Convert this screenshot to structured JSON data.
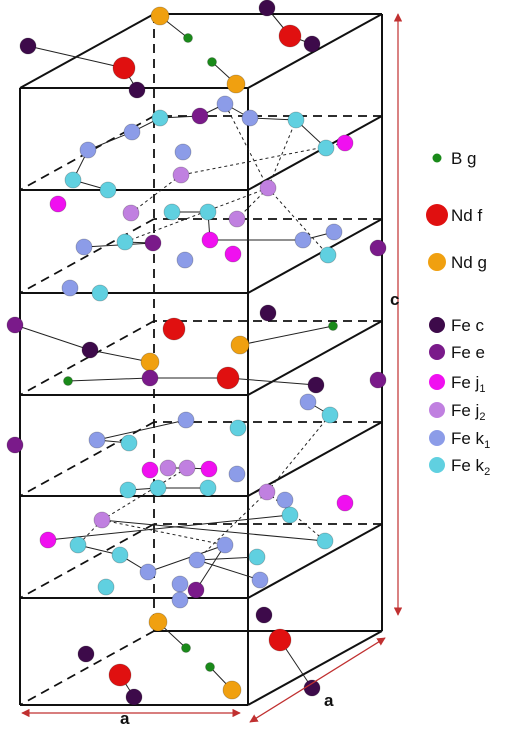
{
  "labels": {
    "a_front": "a",
    "a_side": "a",
    "c": "c"
  },
  "legend": [
    {
      "label": "B g",
      "color": "#1a8a1a"
    },
    {
      "label": "Nd f",
      "color": "#e01010"
    },
    {
      "label": "Nd g",
      "color": "#f0a010"
    },
    {
      "label": "Fe c",
      "color": "#3d0a4a"
    },
    {
      "label": "Fe e",
      "color": "#7a1a8a"
    },
    {
      "label": "Fe j",
      "sub": "1",
      "color": "#f010f0"
    },
    {
      "label": "Fe j",
      "sub": "2",
      "color": "#c080e0"
    },
    {
      "label": "Fe k",
      "sub": "1",
      "color": "#8c9ce8"
    },
    {
      "label": "Fe k",
      "sub": "2",
      "color": "#60d0e0"
    }
  ]
}
